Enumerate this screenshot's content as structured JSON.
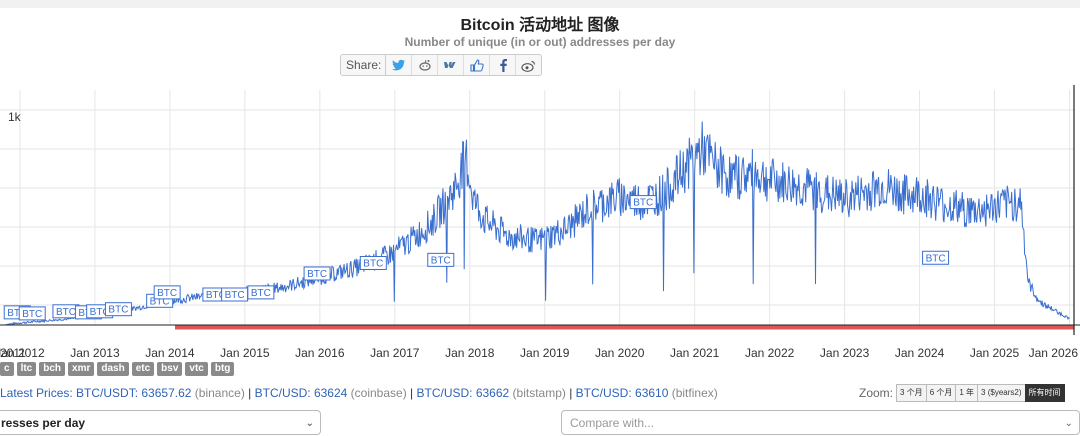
{
  "header": {
    "title": "Bitcoin 活动地址 图像",
    "subtitle": "Number of unique (in or out) addresses per day"
  },
  "share": {
    "label": "Share:",
    "icons": [
      "twitter-icon",
      "reddit-icon",
      "vk-icon",
      "like-icon",
      "facebook-icon",
      "weibo-icon"
    ]
  },
  "chart_data": {
    "type": "line",
    "ylabel": "",
    "ytick_label": "1k",
    "x_tick_labels": [
      "2011",
      "Jan 2012",
      "Jan 2013",
      "Jan 2014",
      "Jan 2015",
      "Jan 2016",
      "Jan 2017",
      "Jan 2018",
      "Jan 2019",
      "Jan 2020",
      "Jan 2021",
      "Jan 2022",
      "Jan 2023",
      "Jan 2024",
      "Jan 2025",
      "Jan 2026"
    ],
    "x": [
      2011.8,
      2012.0,
      2012.5,
      2013.0,
      2013.3,
      2013.6,
      2013.9,
      2014.3,
      2014.8,
      2015.0,
      2015.5,
      2016.0,
      2016.5,
      2016.9,
      2017.2,
      2017.5,
      2017.8,
      2017.95,
      2018.05,
      2018.2,
      2018.5,
      2018.9,
      2019.3,
      2019.6,
      2020.0,
      2020.3,
      2020.6,
      2020.9,
      2021.1,
      2021.3,
      2021.5,
      2021.8,
      2022.0,
      2022.5,
      2023.0,
      2023.5,
      2023.8,
      2024.0,
      2024.3,
      2024.7,
      2025.0,
      2025.35,
      2025.45,
      2025.6,
      2025.85,
      2026.0
    ],
    "y": [
      0.3,
      2,
      5,
      8,
      12,
      17,
      22,
      26,
      30,
      31,
      36,
      45,
      55,
      66,
      80,
      98,
      130,
      160,
      120,
      100,
      85,
      80,
      92,
      112,
      122,
      118,
      126,
      152,
      168,
      150,
      140,
      145,
      138,
      130,
      120,
      132,
      124,
      125,
      115,
      108,
      112,
      118,
      40,
      22,
      12,
      6
    ],
    "ylim": [
      0,
      200
    ],
    "markers": [
      {
        "label": "BTC",
        "x": 2011.95,
        "y": 3
      },
      {
        "label": "BTC",
        "x": 2012.15,
        "y": 2
      },
      {
        "label": "BTC",
        "x": 2012.6,
        "y": 4
      },
      {
        "label": "BTC",
        "x": 2012.9,
        "y": 3
      },
      {
        "label": "BTC",
        "x": 2013.05,
        "y": 4
      },
      {
        "label": "BTC",
        "x": 2013.3,
        "y": 6
      },
      {
        "label": "BTC",
        "x": 2013.85,
        "y": 14
      },
      {
        "label": "BTC",
        "x": 2013.95,
        "y": 22
      },
      {
        "label": "BTC",
        "x": 2014.6,
        "y": 20
      },
      {
        "label": "BTC",
        "x": 2014.85,
        "y": 20
      },
      {
        "label": "BTC",
        "x": 2015.2,
        "y": 22
      },
      {
        "label": "BTC",
        "x": 2015.95,
        "y": 40
      },
      {
        "label": "BTC",
        "x": 2016.7,
        "y": 50
      },
      {
        "label": "BTC",
        "x": 2017.6,
        "y": 53
      },
      {
        "label": "BTC",
        "x": 2020.3,
        "y": 108
      },
      {
        "label": "BTC",
        "x": 2024.2,
        "y": 55
      }
    ],
    "reference_line": {
      "color": "#e05555",
      "y": 0
    }
  },
  "coins": [
    "c",
    "ltc",
    "bch",
    "xmr",
    "dash",
    "etc",
    "bsv",
    "vtc",
    "btg"
  ],
  "prices": {
    "lead": "Latest Prices:",
    "items": [
      {
        "pair": "BTC/USDT: 63657.62",
        "exchange": "(binance)"
      },
      {
        "pair": "BTC/USD: 63624",
        "exchange": "(coinbase)"
      },
      {
        "pair": "BTC/USD: 63662",
        "exchange": "(bitstamp)"
      },
      {
        "pair": "BTC/USD: 63610",
        "exchange": "(bitfinex)"
      }
    ],
    "separator": "|"
  },
  "zoom": {
    "label": "Zoom:",
    "options": [
      "3 个月",
      "6 个月",
      "1 年",
      "3 ($years2)",
      "所有时间"
    ],
    "active_index": 4
  },
  "selects": {
    "metric_value": "resses per day",
    "compare_placeholder": "Compare with..."
  },
  "colors": {
    "series": "#3a6fd0",
    "marker_border": "#3a6fd0",
    "reference": "#e05555",
    "accent": "#2f63b8"
  }
}
